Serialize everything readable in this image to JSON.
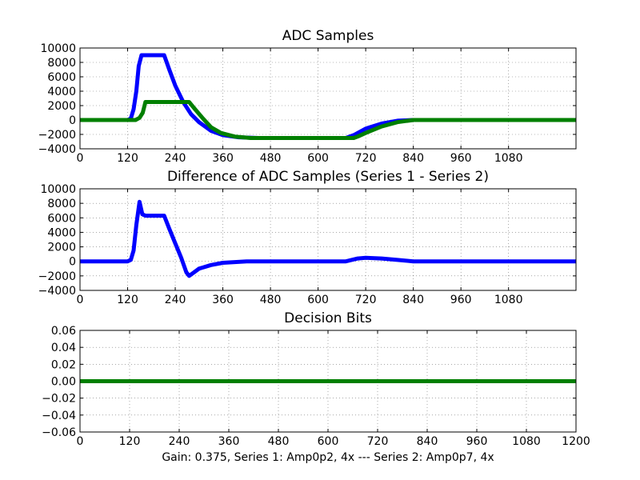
{
  "figure_caption": "Gain: 0.375, Series 1: Amp0p2, 4x --- Series 2: Amp0p7, 4x",
  "colors": {
    "series1": "#0000ff",
    "series2": "#007f00"
  },
  "chart_data": [
    {
      "type": "line",
      "title": "ADC Samples",
      "xlabel": "",
      "ylabel": "",
      "xlim": [
        0,
        1250
      ],
      "ylim": [
        -4000,
        10000
      ],
      "xticks": [
        "0",
        "120",
        "240",
        "360",
        "480",
        "600",
        "720",
        "840",
        "960",
        "1080"
      ],
      "yticks": [
        "−4000",
        "−2000",
        "0",
        "2000",
        "4000",
        "6000",
        "8000",
        "10000"
      ],
      "grid": true,
      "series": [
        {
          "name": "Series 1",
          "color": "#0000ff",
          "points": [
            [
              0,
              0
            ],
            [
              120,
              0
            ],
            [
              128,
              200
            ],
            [
              135,
              1500
            ],
            [
              142,
              4000
            ],
            [
              148,
              7500
            ],
            [
              155,
              9000
            ],
            [
              212,
              9000
            ],
            [
              225,
              7000
            ],
            [
              240,
              4800
            ],
            [
              260,
              2500
            ],
            [
              280,
              800
            ],
            [
              300,
              -300
            ],
            [
              330,
              -1500
            ],
            [
              360,
              -2100
            ],
            [
              400,
              -2400
            ],
            [
              450,
              -2500
            ],
            [
              670,
              -2500
            ],
            [
              690,
              -2100
            ],
            [
              720,
              -1200
            ],
            [
              760,
              -500
            ],
            [
              800,
              -100
            ],
            [
              840,
              0
            ],
            [
              1250,
              0
            ]
          ]
        },
        {
          "name": "Series 2",
          "color": "#007f00",
          "points": [
            [
              0,
              0
            ],
            [
              140,
              0
            ],
            [
              150,
              300
            ],
            [
              158,
              1000
            ],
            [
              165,
              2500
            ],
            [
              275,
              2500
            ],
            [
              290,
              1500
            ],
            [
              310,
              200
            ],
            [
              330,
              -1000
            ],
            [
              355,
              -1800
            ],
            [
              390,
              -2300
            ],
            [
              430,
              -2500
            ],
            [
              690,
              -2500
            ],
            [
              700,
              -2300
            ],
            [
              720,
              -1800
            ],
            [
              760,
              -900
            ],
            [
              800,
              -300
            ],
            [
              840,
              0
            ],
            [
              1250,
              0
            ]
          ]
        }
      ]
    },
    {
      "type": "line",
      "title": "Difference of ADC Samples (Series 1 - Series 2)",
      "xlabel": "",
      "ylabel": "",
      "xlim": [
        0,
        1250
      ],
      "ylim": [
        -4000,
        10000
      ],
      "xticks": [
        "0",
        "120",
        "240",
        "360",
        "480",
        "600",
        "720",
        "840",
        "960",
        "1080"
      ],
      "yticks": [
        "−4000",
        "−2000",
        "0",
        "2000",
        "4000",
        "6000",
        "8000",
        "10000"
      ],
      "grid": true,
      "series": [
        {
          "name": "Series 1 - Series 2",
          "color": "#0000ff",
          "points": [
            [
              0,
              0
            ],
            [
              120,
              0
            ],
            [
              128,
              200
            ],
            [
              135,
              1500
            ],
            [
              142,
              5000
            ],
            [
              150,
              8200
            ],
            [
              157,
              6500
            ],
            [
              165,
              6300
            ],
            [
              212,
              6300
            ],
            [
              225,
              4500
            ],
            [
              240,
              2500
            ],
            [
              255,
              500
            ],
            [
              268,
              -1500
            ],
            [
              275,
              -2000
            ],
            [
              285,
              -1600
            ],
            [
              300,
              -1000
            ],
            [
              330,
              -500
            ],
            [
              360,
              -200
            ],
            [
              420,
              0
            ],
            [
              670,
              0
            ],
            [
              700,
              400
            ],
            [
              720,
              500
            ],
            [
              760,
              400
            ],
            [
              800,
              200
            ],
            [
              840,
              0
            ],
            [
              1250,
              0
            ]
          ]
        }
      ]
    },
    {
      "type": "line",
      "title": "Decision Bits",
      "xlabel": "Gain: 0.375, Series 1: Amp0p2, 4x --- Series 2: Amp0p7, 4x",
      "ylabel": "",
      "xlim": [
        0,
        1200
      ],
      "ylim": [
        -0.06,
        0.06
      ],
      "xticks": [
        "0",
        "120",
        "240",
        "360",
        "480",
        "600",
        "720",
        "840",
        "960",
        "1080",
        "1200"
      ],
      "yticks": [
        "−0.06",
        "−0.04",
        "−0.02",
        "0.00",
        "0.02",
        "0.04",
        "0.06"
      ],
      "grid": true,
      "series": [
        {
          "name": "Decision Bits",
          "color": "#007f00",
          "points": [
            [
              0,
              0
            ],
            [
              1200,
              0
            ]
          ]
        }
      ]
    }
  ]
}
